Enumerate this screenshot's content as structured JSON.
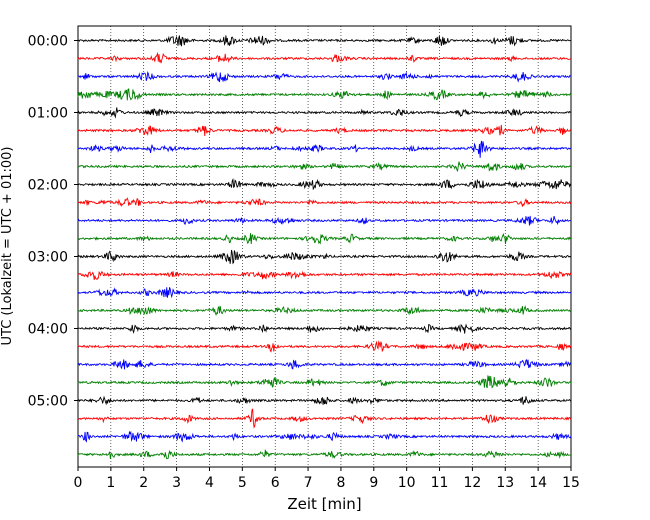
{
  "chart_data": {
    "type": "line",
    "title": "",
    "xlabel": "Zeit  [min]",
    "ylabel": "UTC (Lokalzeit = UTC + 01:00)",
    "xlim": [
      0,
      15
    ],
    "x_ticks": [
      "0",
      "1",
      "2",
      "3",
      "4",
      "5",
      "6",
      "7",
      "8",
      "9",
      "10",
      "11",
      "12",
      "13",
      "14",
      "15"
    ],
    "y_ticks": [
      {
        "label": "00:00",
        "trace_index": 0
      },
      {
        "label": "01:00",
        "trace_index": 4
      },
      {
        "label": "02:00",
        "trace_index": 8
      },
      {
        "label": "03:00",
        "trace_index": 12
      },
      {
        "label": "04:00",
        "trace_index": 16
      },
      {
        "label": "05:00",
        "trace_index": 20
      }
    ],
    "trace_interval_minutes": 15,
    "trace_count": 24,
    "trace_colors": [
      "#000000",
      "#ff0000",
      "#0000ff",
      "#008000"
    ],
    "grid": "vertical dotted lines at each minute",
    "legend": "none"
  }
}
